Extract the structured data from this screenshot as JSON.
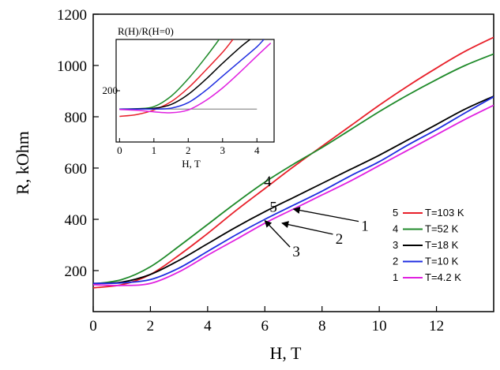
{
  "chart_data": [
    {
      "type": "line",
      "title": "",
      "xlabel": "H, T",
      "ylabel": "R, kOhm",
      "xlim": [
        0,
        14
      ],
      "ylim": [
        40,
        1200
      ],
      "xticks": [
        0,
        2,
        4,
        6,
        8,
        10,
        12
      ],
      "yticks": [
        200,
        400,
        600,
        800,
        1000,
        1200
      ],
      "grid": false,
      "legend": "bottom-right",
      "series": [
        {
          "name": "T=103 K",
          "number": "5",
          "color": "#e8202a",
          "x": [
            0,
            1,
            2,
            3,
            4,
            5,
            6,
            7,
            8,
            9,
            10,
            11,
            12,
            13,
            14
          ],
          "y": [
            133,
            145,
            185,
            260,
            345,
            435,
            520,
            605,
            685,
            765,
            845,
            920,
            990,
            1055,
            1110
          ]
        },
        {
          "name": "T=52 K",
          "number": "4",
          "color": "#1f8a2a",
          "x": [
            0,
            1,
            2,
            3,
            4,
            5,
            6,
            7,
            8,
            9,
            10,
            11,
            12,
            13,
            14
          ],
          "y": [
            148,
            165,
            215,
            295,
            380,
            465,
            545,
            615,
            680,
            750,
            820,
            885,
            945,
            1000,
            1045
          ]
        },
        {
          "name": "T=18 K",
          "number": "3",
          "color": "#000000",
          "x": [
            0,
            1,
            2,
            3,
            4,
            5,
            6,
            7,
            8,
            9,
            10,
            11,
            12,
            13,
            14
          ],
          "y": [
            150,
            155,
            185,
            240,
            305,
            370,
            430,
            485,
            540,
            595,
            650,
            710,
            770,
            830,
            880
          ]
        },
        {
          "name": "T=10 K",
          "number": "2",
          "color": "#1f2de0",
          "x": [
            0,
            1,
            2,
            3,
            4,
            5,
            6,
            7,
            8,
            9,
            10,
            11,
            12,
            13,
            14
          ],
          "y": [
            150,
            152,
            165,
            210,
            275,
            340,
            400,
            455,
            510,
            570,
            625,
            690,
            750,
            815,
            878
          ]
        },
        {
          "name": "T=4.2 K",
          "number": "1",
          "color": "#e020e0",
          "x": [
            0,
            1,
            2,
            3,
            4,
            5,
            6,
            7,
            8,
            9,
            10,
            11,
            12,
            13,
            14
          ],
          "y": [
            145,
            142,
            150,
            195,
            260,
            322,
            385,
            440,
            495,
            550,
            610,
            670,
            730,
            790,
            845
          ]
        }
      ],
      "annotations": [
        {
          "text": "4",
          "x": 6.1,
          "y": 530
        },
        {
          "text": "5",
          "x": 6.3,
          "y": 430
        },
        {
          "text": "1",
          "x": 9.5,
          "y": 355
        },
        {
          "text": "2",
          "x": 8.6,
          "y": 305
        },
        {
          "text": "3",
          "x": 7.1,
          "y": 255
        }
      ]
    },
    {
      "type": "line",
      "title": "R(H)/R(H=0)",
      "xlabel": "H, T",
      "ylabel": "",
      "xlim": [
        -0.1,
        4.5
      ],
      "ylim": [
        -80,
        480
      ],
      "xticks": [
        0,
        1,
        2,
        3,
        4
      ],
      "yticks": [
        200
      ],
      "grid": false,
      "reference_line": {
        "y": 100,
        "x": [
          0,
          4
        ]
      },
      "series": [
        {
          "name": "T=52 K",
          "color": "#1f8a2a",
          "x": [
            0,
            0.5,
            1,
            1.5,
            2,
            2.5,
            2.9
          ],
          "y": [
            100,
            102,
            113,
            170,
            265,
            380,
            480
          ]
        },
        {
          "name": "T=103 K",
          "color": "#e8202a",
          "x": [
            0,
            0.5,
            1,
            1.5,
            2,
            2.5,
            3,
            3.3
          ],
          "y": [
            60,
            70,
            95,
            140,
            215,
            310,
            410,
            480
          ]
        },
        {
          "name": "T=18 K",
          "color": "#000000",
          "x": [
            0,
            0.5,
            1,
            1.5,
            2,
            2.5,
            3,
            3.5,
            3.8
          ],
          "y": [
            100,
            101,
            104,
            125,
            180,
            260,
            350,
            435,
            480
          ]
        },
        {
          "name": "T=10 K",
          "color": "#1f2de0",
          "x": [
            0,
            0.5,
            1,
            1.5,
            2,
            2.5,
            3,
            3.5,
            4,
            4.2
          ],
          "y": [
            100,
            100,
            100,
            105,
            135,
            200,
            280,
            360,
            440,
            480
          ]
        },
        {
          "name": "T=4.2 K",
          "color": "#e020e0",
          "x": [
            0,
            0.5,
            1,
            1.5,
            2,
            2.5,
            3,
            3.5,
            4,
            4.4
          ],
          "y": [
            98,
            93,
            85,
            80,
            95,
            145,
            215,
            300,
            390,
            460
          ]
        }
      ]
    }
  ]
}
